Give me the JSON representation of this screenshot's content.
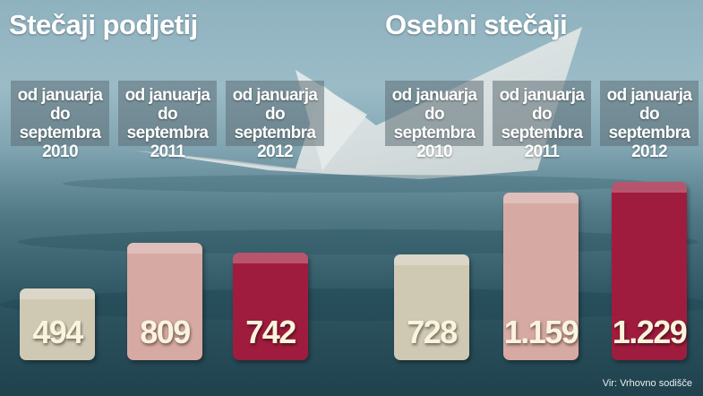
{
  "source": "Vir: Vrhovno sodišče",
  "colors": {
    "2010": "#cfc9b4",
    "2011": "#d6a9a3",
    "2012": "#a01c3e"
  },
  "chart_data": [
    {
      "type": "bar",
      "title": "Stečaji podjetij",
      "categories": [
        [
          "od januarja",
          "do septembra",
          "2010"
        ],
        [
          "od januarja",
          "do septembra",
          "2011"
        ],
        [
          "od januarja",
          "do septembra",
          "2012"
        ]
      ],
      "values": [
        494,
        809,
        742
      ],
      "value_labels": [
        "494",
        "809",
        "742"
      ],
      "ylim": [
        0,
        1300
      ]
    },
    {
      "type": "bar",
      "title": "Osebni stečaji",
      "categories": [
        [
          "od januarja",
          "do septembra",
          "2010"
        ],
        [
          "od januarja",
          "do septembra",
          "2011"
        ],
        [
          "od januarja",
          "do septembra",
          "2012"
        ]
      ],
      "values": [
        728,
        1159,
        1229
      ],
      "value_labels": [
        "728",
        "1.159",
        "1.229"
      ],
      "ylim": [
        0,
        1300
      ]
    }
  ]
}
